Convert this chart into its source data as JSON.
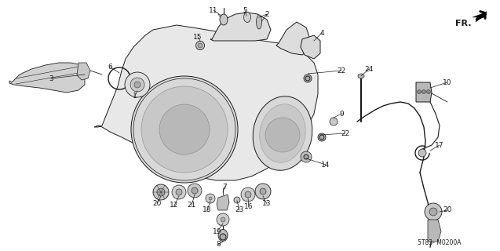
{
  "diagram_code": "5T83- M0200A",
  "bg_color": "#ffffff",
  "fg_color": "#1a1a1a",
  "fr_label": "FR.",
  "fig_width": 6.37,
  "fig_height": 3.2,
  "dpi": 100,
  "font_size_label": 6.5,
  "font_size_code": 5.5,
  "lw_main": 0.7,
  "lw_thin": 0.45,
  "lw_thick": 1.1
}
